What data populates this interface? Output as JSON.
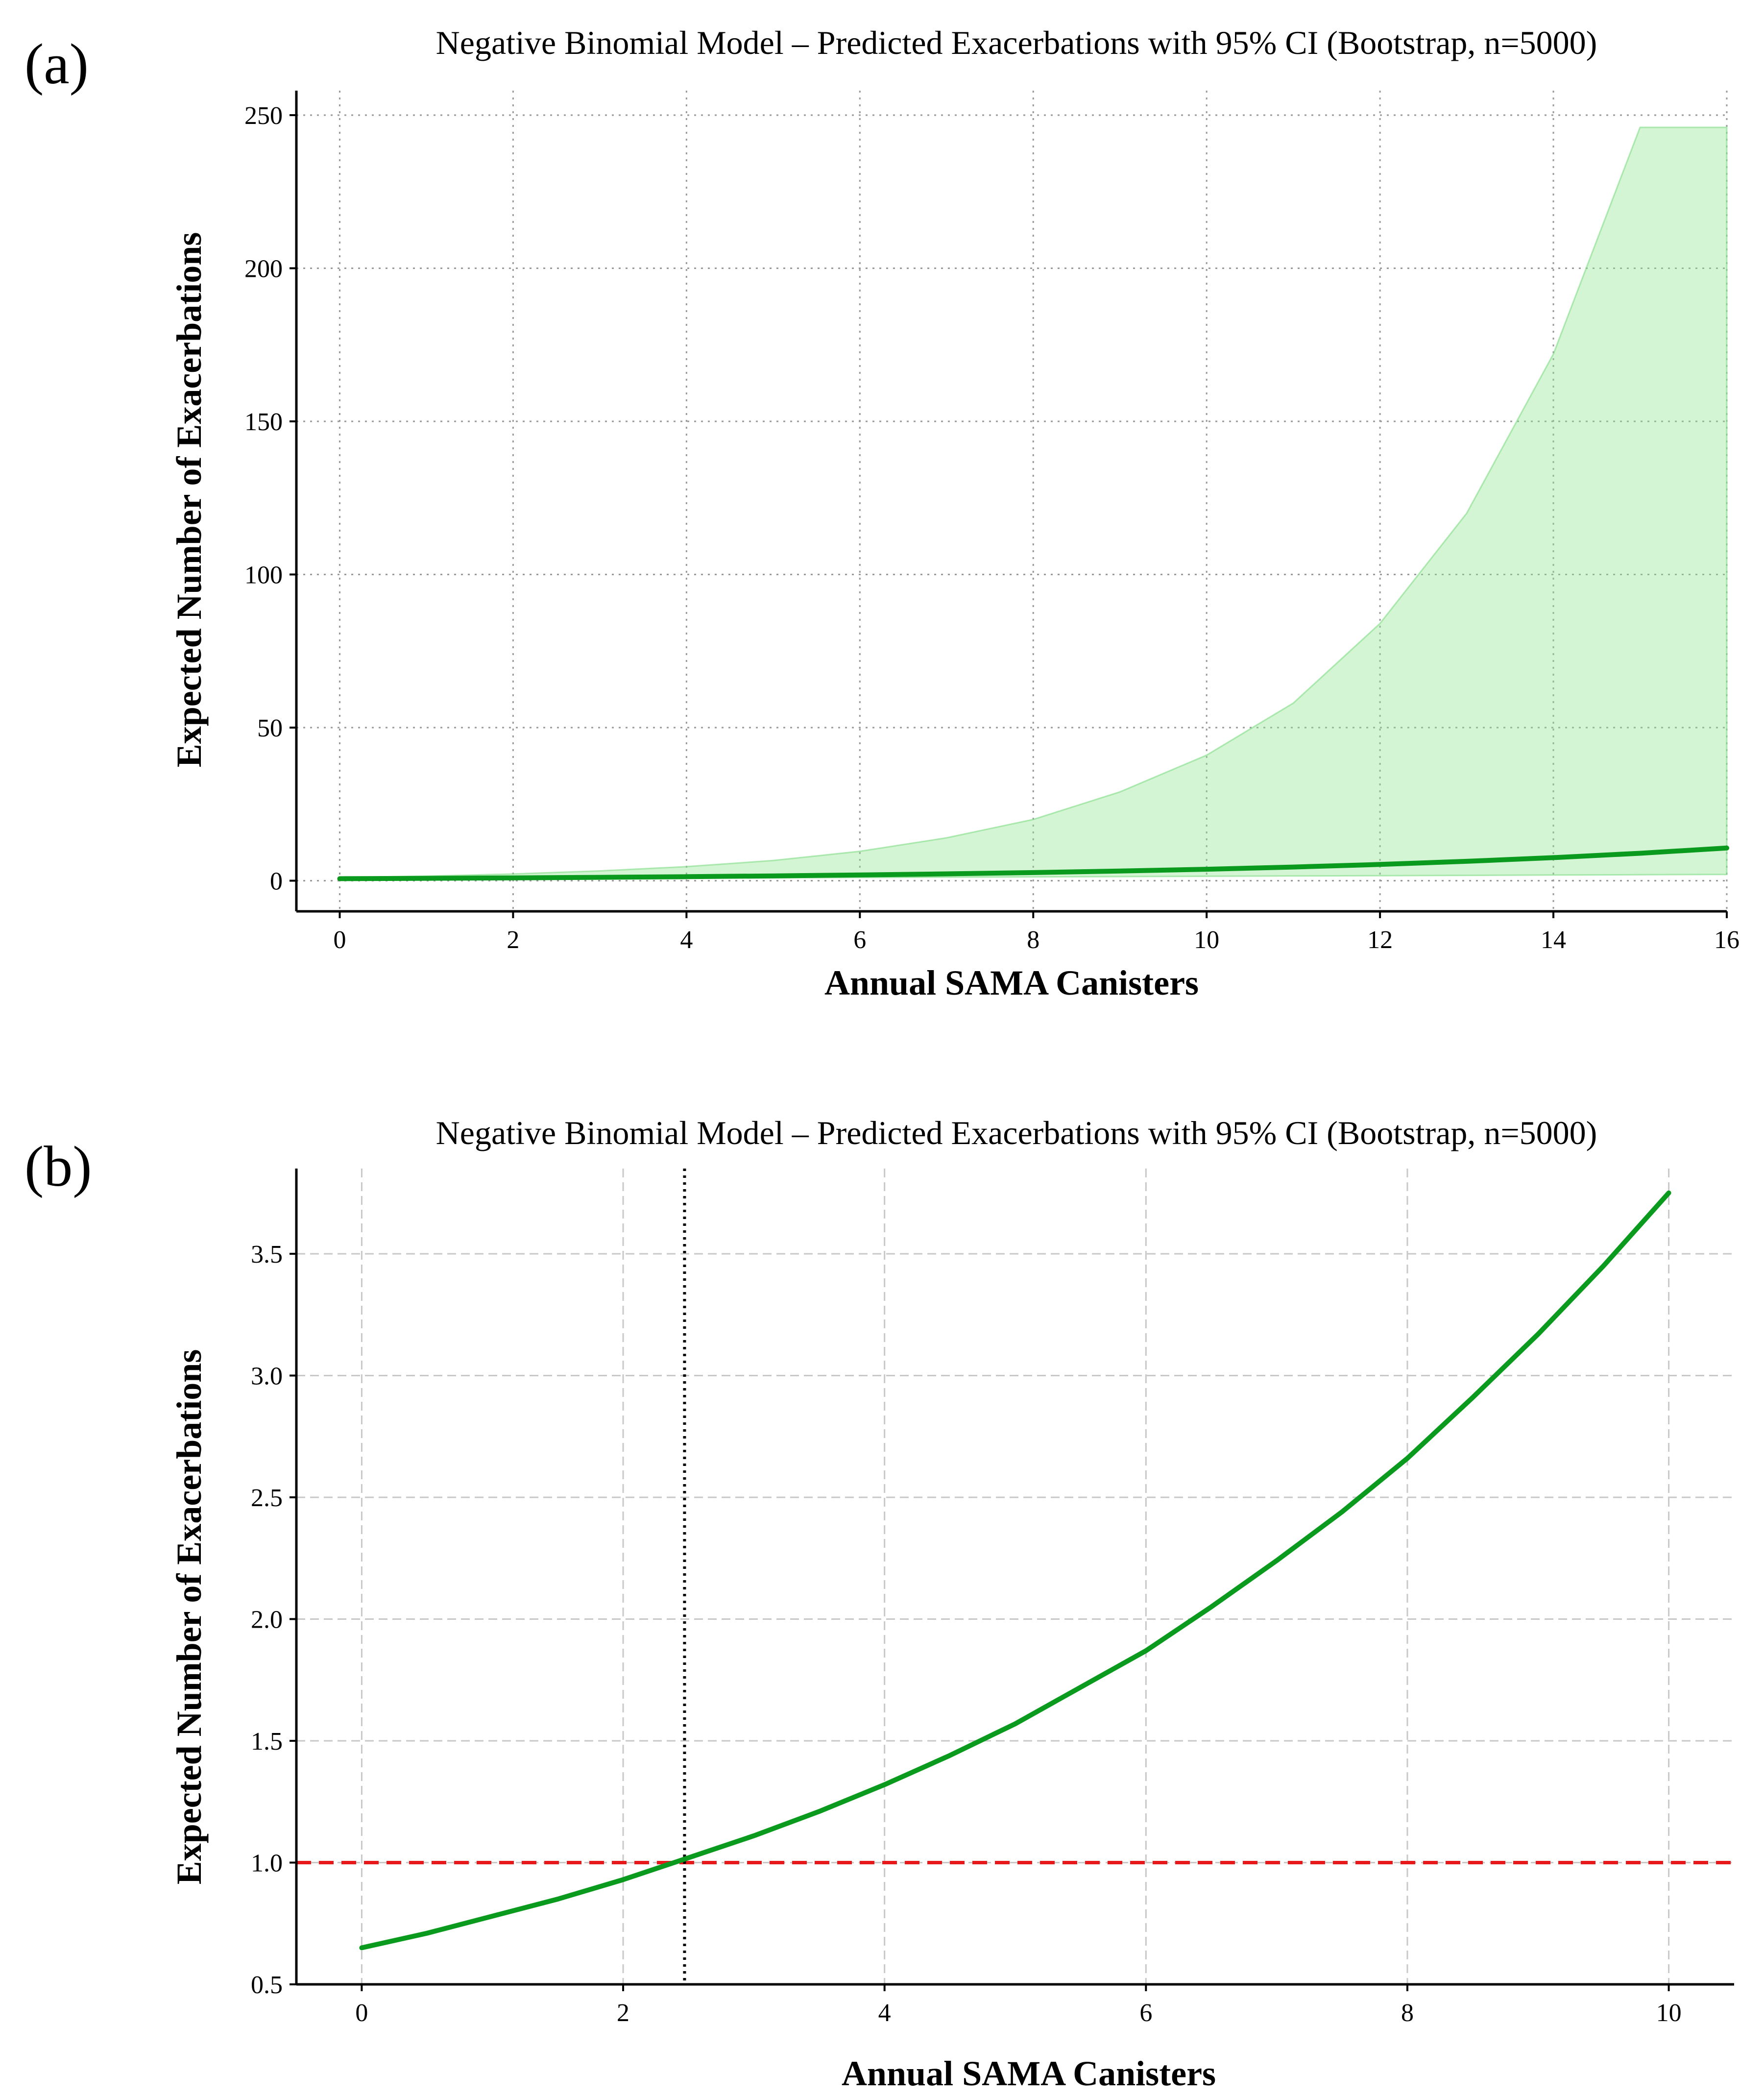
{
  "chart_data": [
    {
      "type": "line",
      "panel_label": "(a)",
      "title": "Negative Binomial Model – Predicted Exacerbations with 95% CI (Bootstrap, n=5000)",
      "xlabel": "Annual SAMA Canisters",
      "ylabel": "Expected Number of Exacerbations",
      "xlim": [
        -0.5,
        16
      ],
      "ylim": [
        -10,
        258
      ],
      "x_ticks": [
        0,
        2,
        4,
        6,
        8,
        10,
        12,
        14,
        16
      ],
      "y_ticks": [
        0,
        50,
        100,
        150,
        200,
        250
      ],
      "grid": true,
      "colors": {
        "line": "#0a9a1e",
        "band": "#8ee58c",
        "band_edge": "#7fdc85"
      },
      "series": [
        {
          "name": "Predicted exacerbations",
          "x": [
            0,
            1,
            2,
            3,
            4,
            5,
            6,
            7,
            8,
            9,
            10,
            11,
            12,
            13,
            14,
            15,
            16
          ],
          "values": [
            0.65,
            0.78,
            0.93,
            1.11,
            1.32,
            1.57,
            1.87,
            2.24,
            2.66,
            3.17,
            3.75,
            4.47,
            5.32,
            6.33,
            7.53,
            8.96,
            10.67
          ]
        }
      ],
      "ci_band": {
        "name": "95% CI",
        "x": [
          0,
          1,
          2,
          3,
          4,
          5,
          6,
          7,
          8,
          9,
          10,
          11,
          12,
          13,
          14,
          15,
          16
        ],
        "lower": [
          0.45,
          0.55,
          0.65,
          0.75,
          0.85,
          0.95,
          1.05,
          1.15,
          1.25,
          1.35,
          1.45,
          1.55,
          1.65,
          1.75,
          1.85,
          1.95,
          2.05
        ],
        "upper": [
          1.0,
          1.5,
          2.2,
          3.2,
          4.6,
          6.6,
          9.6,
          14,
          20,
          29,
          41,
          58,
          84,
          120,
          172,
          246,
          246
        ]
      }
    },
    {
      "type": "line",
      "panel_label": "(b)",
      "title": "Negative Binomial Model – Predicted Exacerbations with 95% CI (Bootstrap, n=5000)",
      "xlabel": "Annual SAMA Canisters",
      "ylabel": "Expected Number of Exacerbations",
      "xlim": [
        -0.5,
        10.5
      ],
      "ylim": [
        0.5,
        3.85
      ],
      "x_ticks": [
        0,
        2,
        4,
        6,
        8,
        10
      ],
      "y_ticks": [
        0.5,
        1.0,
        1.5,
        2.0,
        2.5,
        3.0,
        3.5
      ],
      "y_tick_labels": [
        "0.5",
        "1.0",
        "1.5",
        "2.0",
        "2.5",
        "3.0",
        "3.5"
      ],
      "grid": true,
      "colors": {
        "line": "#0a9a1e",
        "threshold": "#e8191a",
        "crossing": "#000000"
      },
      "series": [
        {
          "name": "Predicted exacerbations",
          "x": [
            0,
            0.5,
            1,
            1.5,
            2,
            2.5,
            3,
            3.5,
            4,
            4.5,
            5,
            5.5,
            6,
            6.5,
            7,
            7.5,
            8,
            8.5,
            9,
            9.5,
            10
          ],
          "values": [
            0.65,
            0.71,
            0.78,
            0.85,
            0.93,
            1.02,
            1.11,
            1.21,
            1.32,
            1.44,
            1.57,
            1.72,
            1.87,
            2.05,
            2.24,
            2.44,
            2.66,
            2.91,
            3.17,
            3.45,
            3.75
          ]
        }
      ],
      "reference_lines": {
        "horizontal": {
          "y": 1.0,
          "style": "dashed"
        },
        "vertical": {
          "x": 2.47,
          "style": "dotted"
        }
      }
    }
  ]
}
